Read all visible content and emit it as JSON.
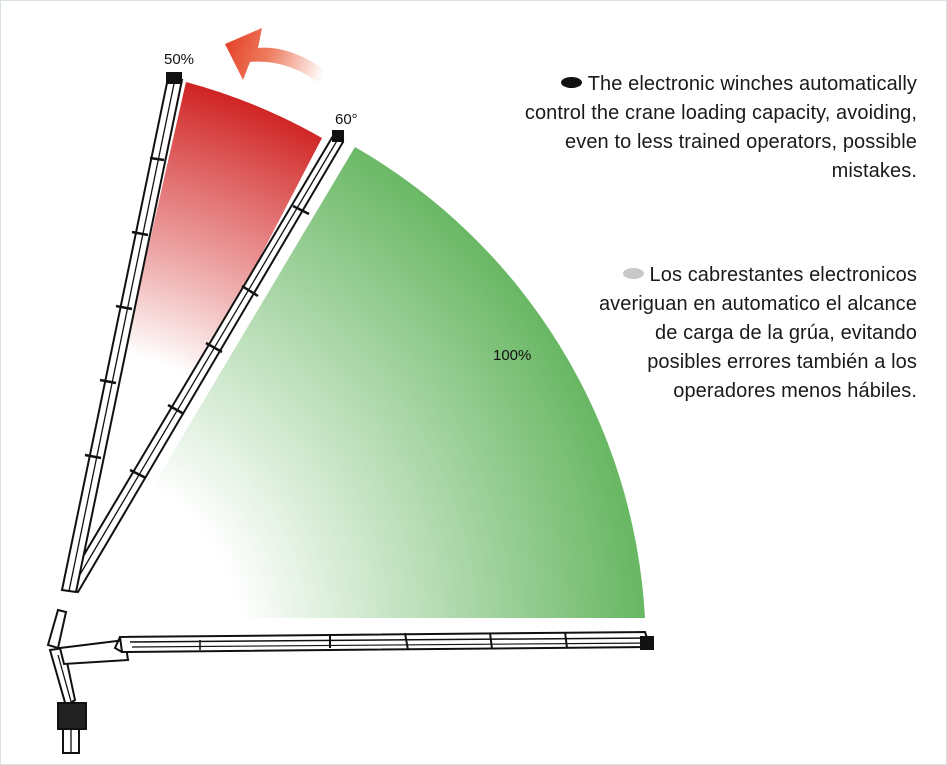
{
  "labels": {
    "percent_50": "50%",
    "angle_60": "60°",
    "percent_100": "100%"
  },
  "text_en": {
    "bullet_color": "#111111",
    "text": "The electronic winches automatically control the crane loading capacity, avoiding, even to less trained operators, possible mistakes."
  },
  "text_es": {
    "bullet_color": "#c8c8c8",
    "text": "Los cabrestantes electronicos averiguan en automatico el alcance de carga de la grúa, evitando posibles errores también a los operadores menos hábiles."
  },
  "colors": {
    "red_zone": "#d42a2a",
    "green_zone": "#5fb35a",
    "arrow": "#e8502a",
    "frame_border": "#d6e3e1"
  }
}
